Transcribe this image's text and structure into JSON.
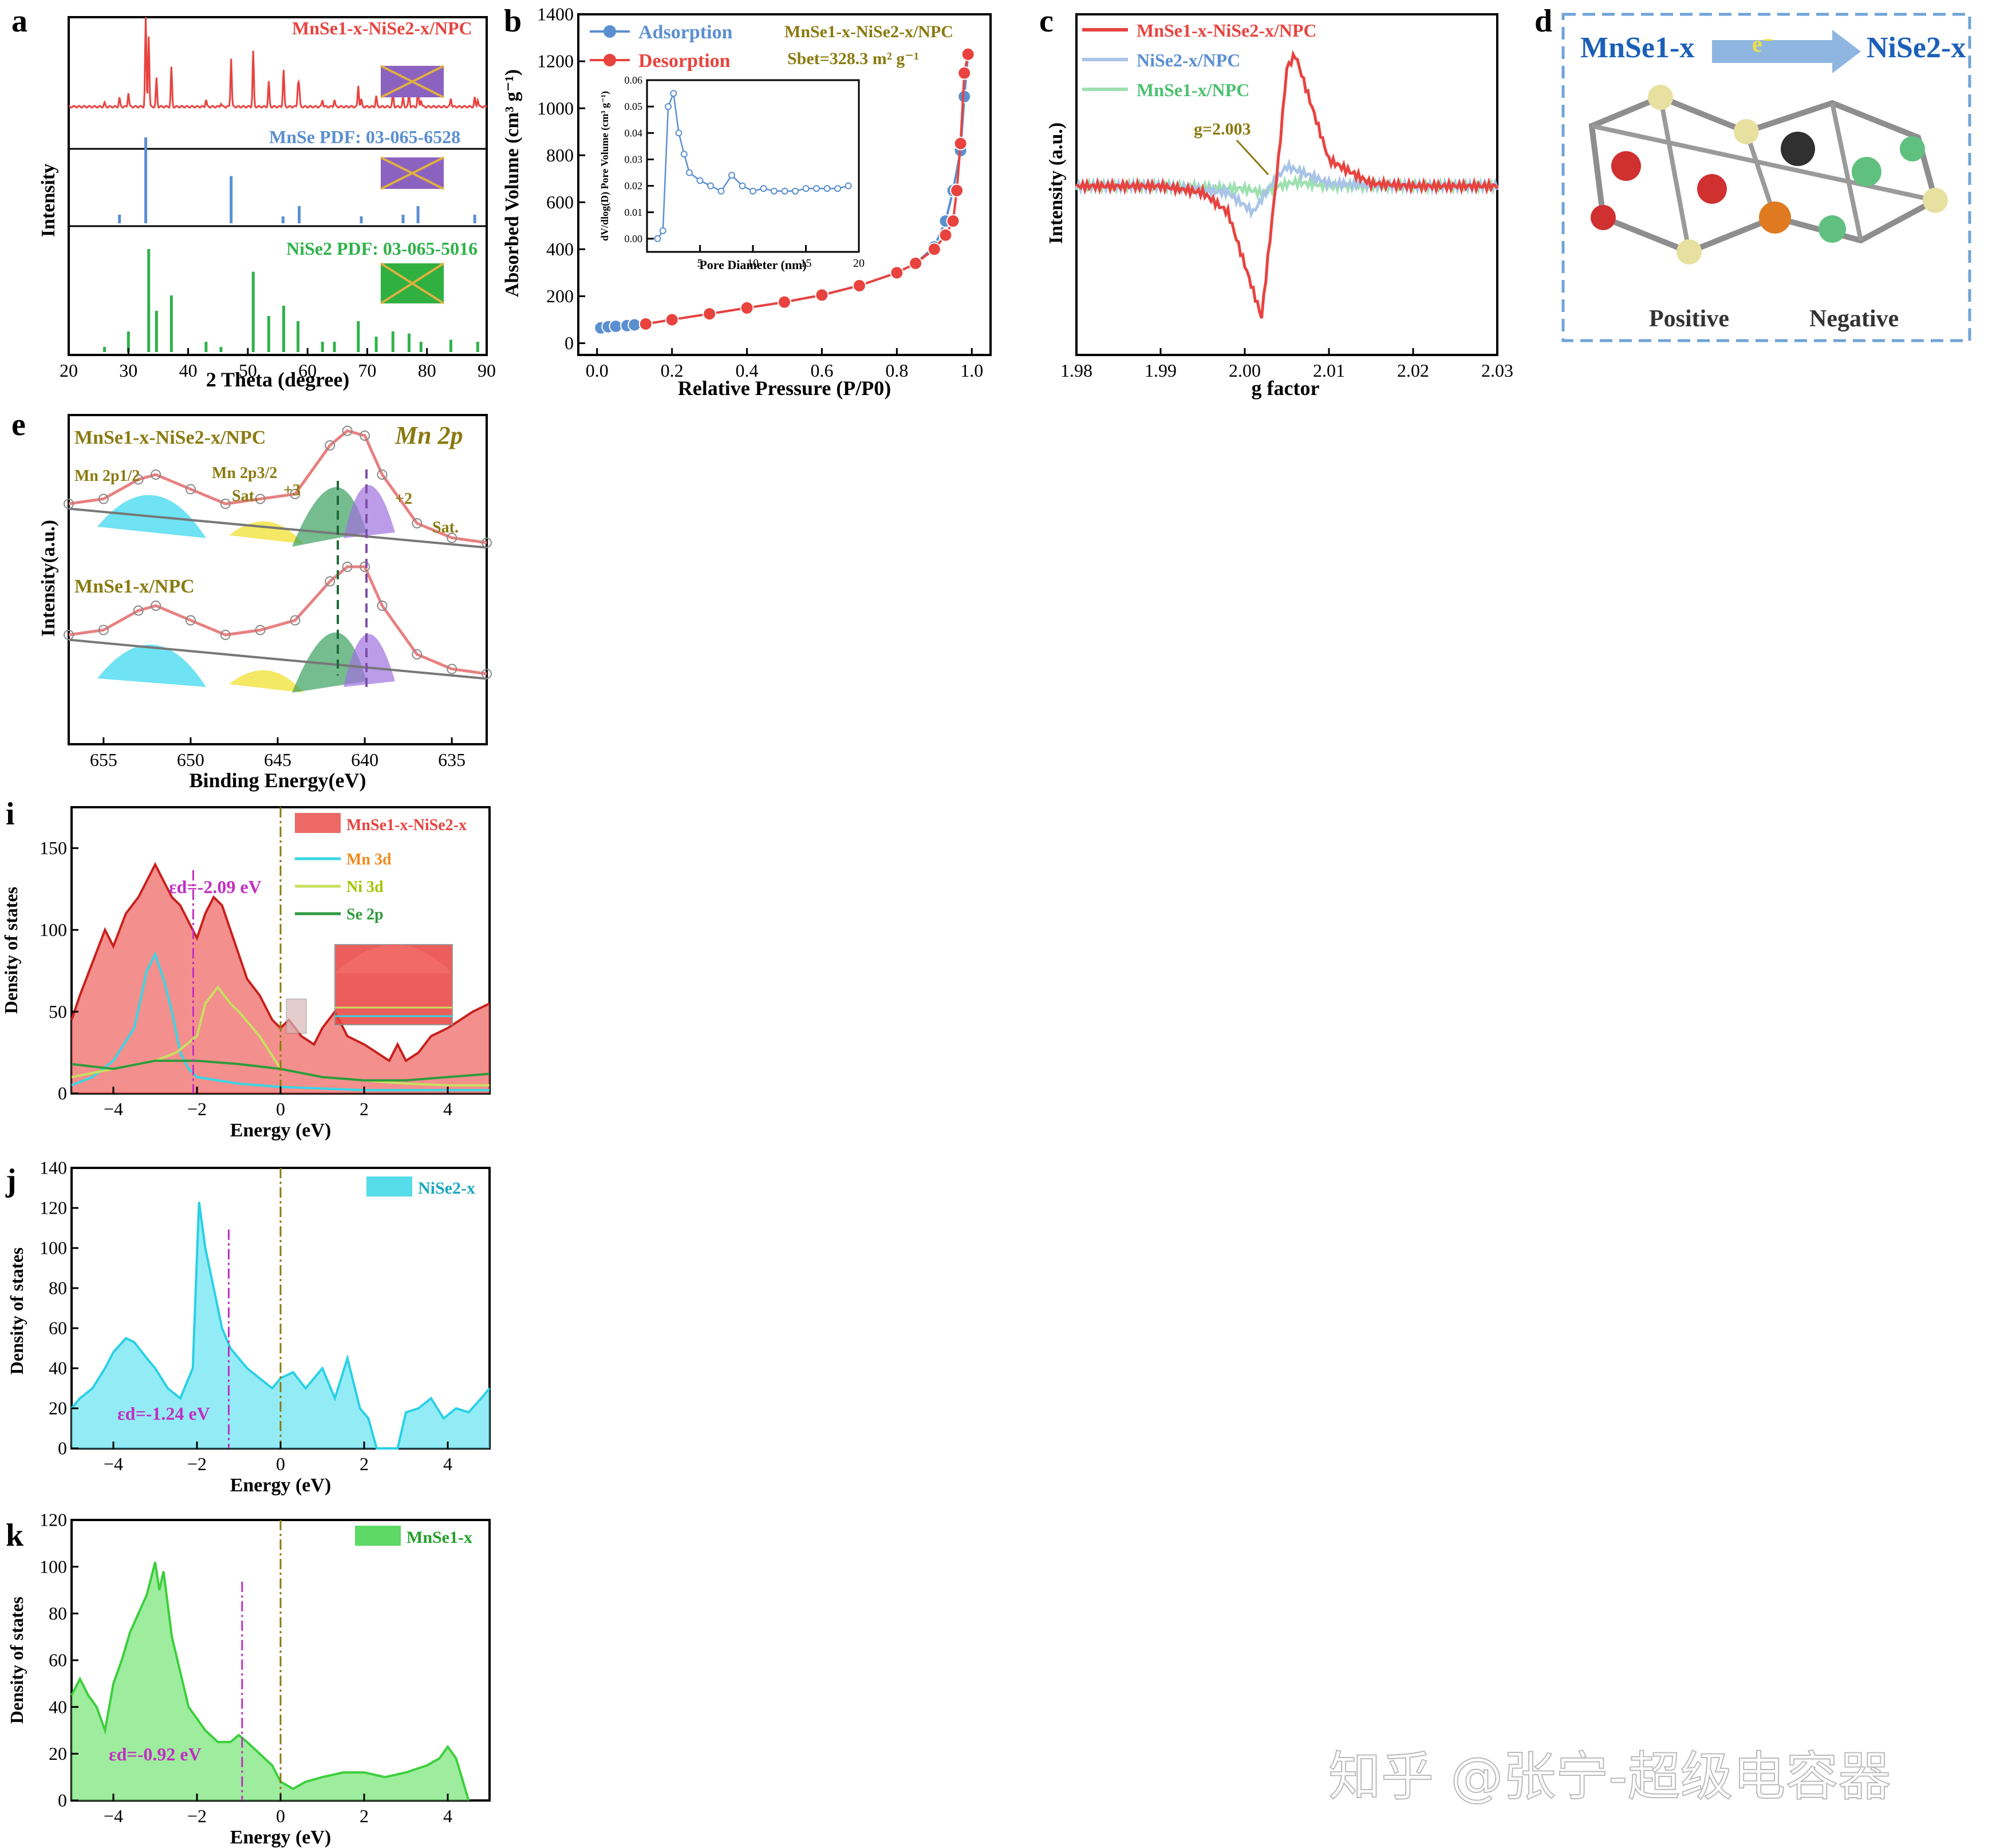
{
  "figure": {
    "watermark": "知乎 @张宁-超级电容器",
    "colors": {
      "red": "#e8433f",
      "blue": "#5b8fd0",
      "green": "#2fb24a",
      "orange": "#f28a1c",
      "purple": "#7b4fa6",
      "cyan": "#39d6e6",
      "olive": "#8a7a10",
      "magenta": "#c22fc2"
    }
  },
  "panels": {
    "a": {
      "letter": "a",
      "sample": "MnSe1-x-NiSe2-x/NPC",
      "ref1": "MnSe PDF: 03-065-6528",
      "ref2": "NiSe2 PDF: 03-065-5016",
      "ylabel": "Intensity",
      "xlabel": "2 Theta (degree)",
      "xticks": [
        "20",
        "30",
        "40",
        "50",
        "60",
        "70",
        "80",
        "90"
      ]
    },
    "b": {
      "letter": "b",
      "legend": [
        "Adsorption",
        "Desorption"
      ],
      "sample": "MnSe1-x-NiSe2-x/NPC",
      "sbet": "Sbet=328.3 m² g⁻¹",
      "ylabel": "Absorbed Volume (cm³ g⁻¹)",
      "xlabel": "Relative Pressure (P/P0)",
      "xticks": [
        "0.0",
        "0.2",
        "0.4",
        "0.6",
        "0.8",
        "1.0"
      ],
      "yticks": [
        "0",
        "200",
        "400",
        "600",
        "800",
        "1000",
        "1200",
        "1400"
      ],
      "inset_ylabel": "dV/dlog(D) Pore Volume (cm³ g⁻¹)",
      "inset_xlabel": "Pore Diameter (nm)",
      "inset_xticks": [
        "5",
        "10",
        "15",
        "20"
      ],
      "inset_yticks": [
        "0.00",
        "0.01",
        "0.02",
        "0.03",
        "0.04",
        "0.05",
        "0.06"
      ]
    },
    "c": {
      "letter": "c",
      "legend": [
        "MnSe1-x-NiSe2-x/NPC",
        "NiSe2-x/NPC",
        "MnSe1-x/NPC"
      ],
      "annotation": "g=2.003",
      "ylabel": "Intensity (a.u.)",
      "xlabel": "g factor",
      "xticks": [
        "1.98",
        "1.99",
        "2.00",
        "2.01",
        "2.02",
        "2.03"
      ]
    },
    "d": {
      "letter": "d",
      "left": "MnSe1-x",
      "right": "NiSe2-x",
      "electron": "e⁻",
      "positive": "Positive",
      "negative": "Negative"
    },
    "e": {
      "letter": "e",
      "title": "Mn 2p",
      "sample_top": "MnSe1-x-NiSe2-x/NPC",
      "sample_bottom": "MnSe1-x/NPC",
      "labels": [
        "Mn 2p1/2",
        "Mn 2p3/2",
        "Sat.",
        "+3",
        "+2",
        "Sat."
      ],
      "ylabel": "Intensity(a.u.)",
      "xlabel": "Binding Energy(eV)",
      "xticks": [
        "655",
        "650",
        "645",
        "640",
        "635"
      ]
    },
    "i": {
      "letter": "i",
      "legend": [
        "MnSe1-x-NiSe2-x",
        "Mn 3d",
        "Ni 3d",
        "Se 2p"
      ],
      "ed": "εd=-2.09 eV",
      "ylabel": "Density of states",
      "xlabel": "Energy (eV)",
      "xticks": [
        "−4",
        "−2",
        "0",
        "2",
        "4"
      ],
      "yticks": [
        "0",
        "50",
        "100",
        "150"
      ]
    },
    "j": {
      "letter": "j",
      "legend": "NiSe2-x",
      "ed": "εd=-1.24 eV",
      "ylabel": "Density of states",
      "xlabel": "Energy (eV)",
      "xticks": [
        "−4",
        "−2",
        "0",
        "2",
        "4"
      ],
      "yticks": [
        "0",
        "20",
        "40",
        "60",
        "80",
        "100",
        "120",
        "140"
      ]
    },
    "k": {
      "letter": "k",
      "legend": "MnSe1-x",
      "ed": "εd=-0.92 eV",
      "ylabel": "Density of states",
      "xlabel": "Energy (eV)",
      "xticks": [
        "−4",
        "−2",
        "0",
        "2",
        "4"
      ],
      "yticks": [
        "0",
        "20",
        "40",
        "60",
        "80",
        "100",
        "120"
      ]
    }
  },
  "chart_data": [
    {
      "panel": "a",
      "type": "bar",
      "title": "",
      "series": [
        {
          "name": "MnSe PDF: 03-065-6528",
          "x": [
            28.5,
            32.9,
            47.2,
            55.9,
            58.6,
            69.0,
            76.0,
            78.5,
            88.0
          ],
          "values": [
            0.1,
            1.0,
            0.55,
            0.08,
            0.2,
            0.08,
            0.1,
            0.2,
            0.1
          ]
        },
        {
          "name": "NiSe2 PDF: 03-065-5016",
          "x": [
            26.0,
            30.0,
            33.4,
            34.7,
            37.2,
            43.0,
            45.5,
            50.9,
            53.5,
            56.0,
            58.4,
            62.5,
            64.5,
            68.5,
            71.5,
            74.3,
            77.0,
            79.0,
            84.0,
            88.5
          ],
          "values": [
            0.05,
            0.2,
            1.0,
            0.4,
            0.55,
            0.1,
            0.05,
            0.78,
            0.35,
            0.45,
            0.3,
            0.1,
            0.1,
            0.3,
            0.15,
            0.2,
            0.18,
            0.1,
            0.12,
            0.1
          ]
        }
      ],
      "xlabel": "2 Theta (degree)",
      "ylabel": "Intensity",
      "xlim": [
        20,
        90
      ]
    },
    {
      "panel": "b",
      "type": "line",
      "series": [
        {
          "name": "Adsorption",
          "x": [
            0.01,
            0.03,
            0.05,
            0.08,
            0.1,
            0.13,
            0.2,
            0.3,
            0.4,
            0.5,
            0.6,
            0.7,
            0.8,
            0.85,
            0.9,
            0.93,
            0.95,
            0.97,
            0.98,
            0.99
          ],
          "values": [
            65,
            70,
            72,
            75,
            78,
            82,
            100,
            125,
            150,
            175,
            205,
            245,
            300,
            340,
            410,
            520,
            650,
            820,
            1050,
            1230
          ]
        },
        {
          "name": "Desorption",
          "x": [
            0.99,
            0.98,
            0.97,
            0.96,
            0.95,
            0.93,
            0.9,
            0.85,
            0.8,
            0.7,
            0.6,
            0.5,
            0.4,
            0.3,
            0.2,
            0.13
          ],
          "values": [
            1230,
            1150,
            850,
            650,
            520,
            460,
            400,
            340,
            300,
            245,
            205,
            175,
            150,
            125,
            100,
            82
          ]
        }
      ],
      "xlabel": "Relative Pressure (P/P0)",
      "ylabel": "Absorbed Volume (cm³ g⁻¹)",
      "ylim": [
        -50,
        1400
      ],
      "xlim": [
        -0.05,
        1.05
      ]
    },
    {
      "panel": "b-inset",
      "type": "line",
      "series": [
        {
          "name": "Pore size",
          "x": [
            1.0,
            1.5,
            2.0,
            2.5,
            3.0,
            3.5,
            4.0,
            5.0,
            6.0,
            7.0,
            8.0,
            9.0,
            10.0,
            11.0,
            12.0,
            13.0,
            14.0,
            15.0,
            16.0,
            17.0,
            18.0,
            19.0
          ],
          "values": [
            0.0,
            0.003,
            0.05,
            0.055,
            0.04,
            0.032,
            0.025,
            0.022,
            0.02,
            0.018,
            0.024,
            0.02,
            0.018,
            0.019,
            0.018,
            0.018,
            0.018,
            0.019,
            0.019,
            0.019,
            0.019,
            0.02
          ]
        }
      ],
      "xlabel": "Pore Diameter (nm)",
      "ylabel": "dV/dlog(D) Pore Volume (cm³ g⁻¹)",
      "xlim": [
        0,
        20
      ],
      "ylim": [
        -0.005,
        0.06
      ]
    },
    {
      "panel": "c",
      "type": "line",
      "series": [
        {
          "name": "MnSe1-x-NiSe2-x/NPC",
          "x": [
            1.98,
            1.99,
            1.995,
            1.998,
            2.0,
            2.002,
            2.004,
            2.005,
            2.006,
            2.008,
            2.01,
            2.015,
            2.02,
            2.03
          ],
          "values": [
            0.0,
            0.0,
            -0.05,
            -0.2,
            -0.6,
            -1.0,
            0.2,
            0.9,
            1.0,
            0.6,
            0.2,
            0.02,
            0.0,
            0.0
          ]
        },
        {
          "name": "NiSe2-x/NPC",
          "x": [
            1.98,
            1.99,
            1.998,
            2.001,
            2.003,
            2.005,
            2.007,
            2.01,
            2.02,
            2.03
          ],
          "values": [
            0.0,
            0.0,
            -0.05,
            -0.2,
            0.0,
            0.15,
            0.1,
            0.02,
            0.0,
            0.0
          ]
        },
        {
          "name": "MnSe1-x/NPC",
          "x": [
            1.98,
            1.99,
            2.0,
            2.002,
            2.004,
            2.006,
            2.01,
            2.02,
            2.03
          ],
          "values": [
            0.0,
            0.0,
            -0.02,
            -0.05,
            0.0,
            0.03,
            0.0,
            0.0,
            0.0
          ]
        }
      ],
      "xlabel": "g factor",
      "ylabel": "Intensity (a.u.)",
      "xlim": [
        1.98,
        2.03
      ],
      "ylim": [
        -1.2,
        1.2
      ]
    },
    {
      "panel": "e",
      "type": "line",
      "series": [
        {
          "name": "MnSe1-x-NiSe2-x/NPC",
          "x": [
            657,
            655,
            653,
            652,
            650,
            648,
            646,
            644,
            642,
            641,
            640,
            639,
            637,
            635,
            633
          ],
          "values": [
            1.3,
            1.35,
            1.55,
            1.6,
            1.45,
            1.3,
            1.35,
            1.4,
            1.9,
            2.05,
            2.0,
            1.6,
            1.1,
            0.95,
            0.9
          ]
        },
        {
          "name": "MnSe1-x/NPC",
          "x": [
            657,
            655,
            653,
            652,
            650,
            648,
            646,
            644,
            642,
            641,
            640,
            639,
            637,
            635,
            633
          ],
          "values": [
            0.3,
            0.35,
            0.55,
            0.6,
            0.45,
            0.3,
            0.35,
            0.45,
            0.85,
            1.0,
            1.0,
            0.6,
            0.1,
            -0.05,
            -0.1
          ]
        }
      ],
      "xlabel": "Binding Energy(eV)",
      "ylabel": "Intensity(a.u.)",
      "xlim": [
        657,
        633
      ]
    },
    {
      "panel": "i",
      "type": "area",
      "series": [
        {
          "name": "MnSe1-x-NiSe2-x",
          "x": [
            -5,
            -4.8,
            -4.5,
            -4.2,
            -4,
            -3.7,
            -3.4,
            -3.2,
            -3.0,
            -2.8,
            -2.6,
            -2.4,
            -2.2,
            -2.0,
            -1.8,
            -1.6,
            -1.4,
            -1.2,
            -1.0,
            -0.8,
            -0.5,
            -0.2,
            0,
            0.2,
            0.5,
            0.8,
            1.0,
            1.3,
            1.6,
            2.0,
            2.3,
            2.6,
            2.8,
            3.0,
            3.3,
            3.6,
            4.0,
            4.3,
            4.6,
            5.0
          ],
          "values": [
            45,
            60,
            80,
            100,
            90,
            110,
            120,
            130,
            140,
            130,
            120,
            115,
            105,
            95,
            110,
            120,
            115,
            100,
            85,
            70,
            60,
            45,
            40,
            45,
            35,
            30,
            40,
            50,
            35,
            30,
            25,
            20,
            30,
            20,
            25,
            35,
            40,
            45,
            50,
            55
          ]
        },
        {
          "name": "Mn 3d",
          "x": [
            -5,
            -4.5,
            -4,
            -3.5,
            -3.2,
            -3.0,
            -2.8,
            -2.6,
            -2.4,
            -2.2,
            -2.0,
            -1.5,
            -1.0,
            -0.5,
            0,
            1,
            2,
            3,
            4,
            5
          ],
          "values": [
            5,
            10,
            20,
            40,
            75,
            85,
            70,
            50,
            25,
            15,
            10,
            8,
            6,
            5,
            4,
            3,
            2,
            2,
            2,
            2
          ]
        },
        {
          "name": "Ni 3d",
          "x": [
            -5,
            -4,
            -3,
            -2.5,
            -2,
            -1.8,
            -1.5,
            -1.2,
            -1.0,
            -0.5,
            0,
            1,
            2,
            3,
            4,
            5
          ],
          "values": [
            10,
            15,
            20,
            25,
            35,
            55,
            65,
            55,
            50,
            35,
            15,
            10,
            8,
            6,
            5,
            5
          ]
        },
        {
          "name": "Se 2p",
          "x": [
            -5,
            -4,
            -3,
            -2,
            -1,
            0,
            1,
            2,
            3,
            4,
            5
          ],
          "values": [
            18,
            15,
            20,
            20,
            18,
            15,
            10,
            8,
            8,
            10,
            12
          ]
        }
      ],
      "xlabel": "Energy (eV)",
      "ylabel": "Density of states",
      "xlim": [
        -5,
        5
      ],
      "ylim": [
        0,
        175
      ]
    },
    {
      "panel": "j",
      "type": "area",
      "series": [
        {
          "name": "NiSe2-x",
          "x": [
            -5,
            -4.8,
            -4.5,
            -4.2,
            -4.0,
            -3.7,
            -3.5,
            -3.2,
            -3.0,
            -2.7,
            -2.4,
            -2.1,
            -1.95,
            -1.8,
            -1.6,
            -1.4,
            -1.2,
            -1.0,
            -0.8,
            -0.5,
            -0.2,
            0,
            0.3,
            0.6,
            1.0,
            1.3,
            1.6,
            1.9,
            2.1,
            2.3,
            2.8,
            3.0,
            3.3,
            3.6,
            3.9,
            4.2,
            4.5,
            4.8,
            5.0
          ],
          "values": [
            20,
            25,
            30,
            40,
            48,
            55,
            53,
            45,
            40,
            30,
            25,
            40,
            123,
            100,
            80,
            60,
            50,
            45,
            40,
            35,
            30,
            35,
            38,
            30,
            40,
            25,
            45,
            20,
            15,
            0,
            0,
            18,
            20,
            25,
            15,
            20,
            18,
            25,
            30
          ]
        }
      ],
      "xlabel": "Energy (eV)",
      "ylabel": "Density of states",
      "xlim": [
        -5,
        5
      ],
      "ylim": [
        0,
        140
      ]
    },
    {
      "panel": "k",
      "type": "area",
      "series": [
        {
          "name": "MnSe1-x",
          "x": [
            -5,
            -4.8,
            -4.6,
            -4.4,
            -4.2,
            -4.0,
            -3.8,
            -3.6,
            -3.4,
            -3.2,
            -3.0,
            -2.9,
            -2.8,
            -2.6,
            -2.4,
            -2.2,
            -2.0,
            -1.8,
            -1.5,
            -1.2,
            -1.0,
            -0.8,
            -0.5,
            -0.2,
            0,
            0.3,
            0.6,
            1.0,
            1.5,
            2.0,
            2.5,
            3.0,
            3.5,
            3.8,
            4.0,
            4.2,
            4.5
          ],
          "values": [
            45,
            52,
            45,
            40,
            30,
            50,
            60,
            72,
            80,
            88,
            102,
            90,
            98,
            70,
            55,
            40,
            35,
            30,
            25,
            25,
            28,
            25,
            20,
            15,
            8,
            5,
            8,
            10,
            12,
            12,
            10,
            12,
            15,
            18,
            23,
            18,
            0
          ]
        }
      ],
      "xlabel": "Energy (eV)",
      "ylabel": "Density of states",
      "xlim": [
        -5,
        5
      ],
      "ylim": [
        0,
        120
      ]
    }
  ]
}
